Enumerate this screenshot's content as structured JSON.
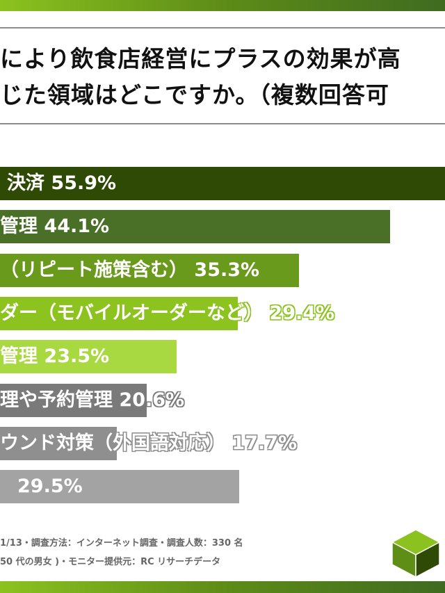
{
  "title_lines": [
    "により飲食店経営にプラスの効果が高",
    "じた領域はどこですか。（複数回答可"
  ],
  "chart_data": {
    "type": "bar",
    "orientation": "horizontal",
    "unit": "%",
    "categories": [
      "決済",
      "管理",
      "（リピート施策含む）",
      "ダー（モバイルオーダーなど）",
      "管理",
      "理や予約管理",
      "ウンド対策（外国語対応）",
      ""
    ],
    "values": [
      55.9,
      44.1,
      35.3,
      29.4,
      23.5,
      20.6,
      17.7,
      29.5
    ],
    "value_labels": [
      "55.9%",
      "44.1%",
      "35.3%",
      "29.4%",
      "23.5%",
      "20.6%",
      "17.7%",
      "29.5%"
    ],
    "colors": [
      "#2e4a05",
      "#4a7028",
      "#6a9a1c",
      "#8cc31f",
      "#a9d940",
      "#7a7a7a",
      "#8f8f8f",
      "#a3a3a3"
    ]
  },
  "footer_lines": [
    "1/13・調査方法：インターネット調査・調査人数：330 名",
    "50 代の男女 )・モニター提供元：RC リサーチデータ"
  ],
  "logo": "green-cube"
}
